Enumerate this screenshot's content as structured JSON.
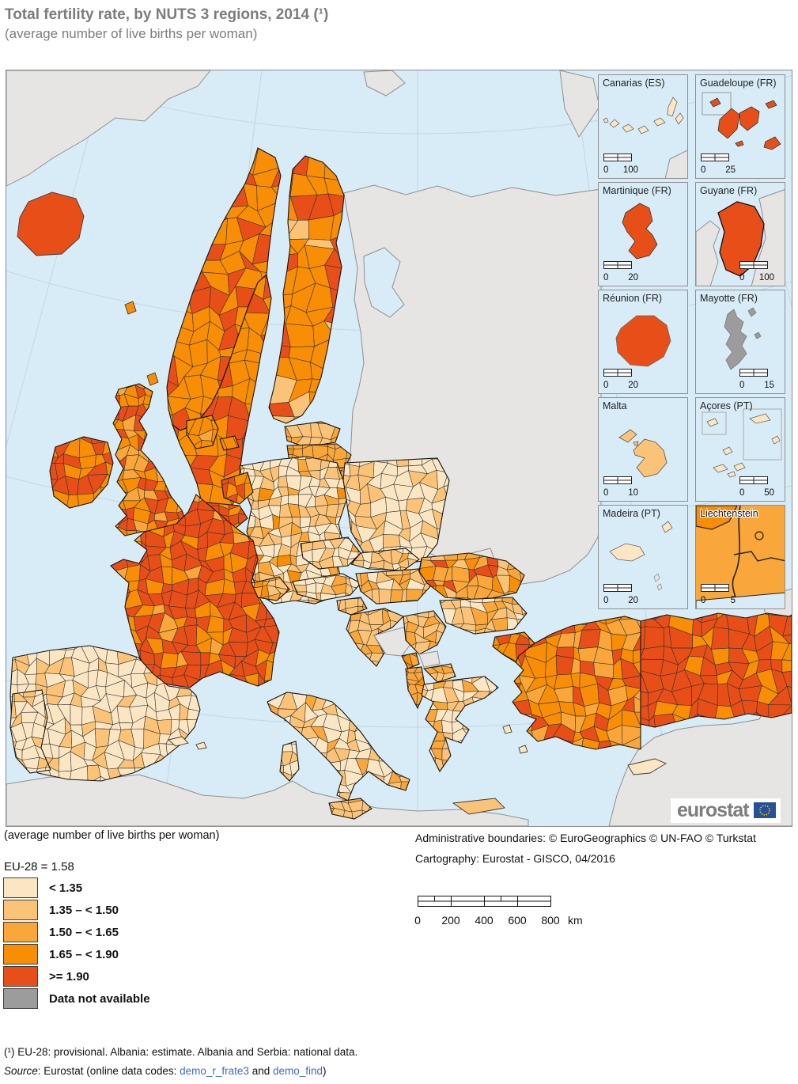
{
  "title": "Total fertility rate, by NUTS 3 regions, 2014 (¹)",
  "subtitle": "(average number of live births per woman)",
  "colors": {
    "c1": "#fbe6c4",
    "c2": "#fbc377",
    "c3": "#f9a63a",
    "c4": "#f78e05",
    "c5": "#e84f18",
    "na": "#9c9c9c",
    "na_light": "#e6e5e3",
    "sea": "#d8ecf7",
    "graticule": "#c3d5e3",
    "flag_blue": "#27509b",
    "flag_stars": "#ffcc00"
  },
  "map": {
    "logo_text": "eurostat",
    "insets": [
      {
        "label": "Canarias (ES)",
        "scale": [
          "0",
          "100"
        ]
      },
      {
        "label": "Guadeloupe (FR)",
        "scale": [
          "0",
          "25"
        ]
      },
      {
        "label": "Martinique (FR)",
        "scale": [
          "0",
          "20"
        ]
      },
      {
        "label": "Guyane (FR)",
        "scale": [
          "0",
          "100"
        ]
      },
      {
        "label": "Réunion (FR)",
        "scale": [
          "0",
          "20"
        ]
      },
      {
        "label": "Mayotte (FR)",
        "scale": [
          "0",
          "15"
        ]
      },
      {
        "label": "Malta",
        "scale": [
          "0",
          "10"
        ]
      },
      {
        "label": "Açores (PT)",
        "scale": [
          "0",
          "50"
        ]
      },
      {
        "label": "Madeira (PT)",
        "scale": [
          "0",
          "20"
        ]
      },
      {
        "label": "Liechtenstein",
        "scale": [
          "0",
          "5"
        ]
      }
    ]
  },
  "legend": {
    "note": "(average number of live births per woman)",
    "eu_value": "EU-28 = 1.58",
    "classes": [
      {
        "label": "< 1.35",
        "class": "c1"
      },
      {
        "label": "1.35 – < 1.50",
        "class": "c2"
      },
      {
        "label": "1.50 – < 1.65",
        "class": "c3"
      },
      {
        "label": "1.65 – < 1.90",
        "class": "c4"
      },
      {
        "label": ">= 1.90",
        "class": "c5"
      },
      {
        "label": "Data not available",
        "class": "na"
      }
    ]
  },
  "credits": {
    "line1": "Administrative boundaries: © EuroGeographics © UN-FAO © Turkstat",
    "line2": "Cartography: Eurostat - GISCO, 04/2016"
  },
  "scalebar": {
    "ticks": [
      "0",
      "200",
      "400",
      "600",
      "800"
    ],
    "unit": "km"
  },
  "footnotes": {
    "note1": "(¹) EU-28: provisional. Albania: estimate. Albania and Serbia: national data.",
    "source_label": "Source",
    "source_mid": ": Eurostat (online data codes: ",
    "link1": "demo_r_frate3",
    "source_and": " and ",
    "link2": "demo_find",
    "source_end": ")"
  },
  "map_regions": [
    {
      "name": "greenland",
      "classes": {
        "na_light": 1
      }
    },
    {
      "name": "svalbard",
      "classes": {
        "na_light": 1
      }
    },
    {
      "name": "novaya-zemlya",
      "classes": {
        "na_light": 1
      }
    },
    {
      "name": "russia-east-europe",
      "classes": {
        "na_light": 1
      }
    },
    {
      "name": "north-africa",
      "classes": {
        "na_light": 1
      }
    },
    {
      "name": "middle-east",
      "classes": {
        "na_light": 1
      }
    },
    {
      "name": "kaliningrad",
      "classes": {
        "na_light": 1
      }
    },
    {
      "name": "bosnia-herzegovina",
      "classes": {
        "na_light": 1
      }
    },
    {
      "name": "kosovo",
      "classes": {
        "na_light": 1
      }
    },
    {
      "name": "moldova",
      "classes": {
        "na_light": 1
      }
    },
    {
      "name": "iceland",
      "classes": {
        "c5": 1
      }
    },
    {
      "name": "norway",
      "classes": {
        "c4": 0.6,
        "c5": 0.4
      }
    },
    {
      "name": "sweden",
      "classes": {
        "c4": 0.62,
        "c5": 0.38
      }
    },
    {
      "name": "finland",
      "classes": {
        "c4": 0.5,
        "c5": 0.3,
        "c2": 0.2
      }
    },
    {
      "name": "denmark",
      "classes": {
        "c4": 0.75,
        "c3": 0.25
      }
    },
    {
      "name": "estonia",
      "classes": {
        "c3": 0.6,
        "c2": 0.4
      }
    },
    {
      "name": "latvia",
      "classes": {
        "c3": 0.9,
        "c4": 0.1
      }
    },
    {
      "name": "lithuania",
      "classes": {
        "c3": 0.75,
        "c4": 0.25
      }
    },
    {
      "name": "united-kingdom",
      "classes": {
        "c4": 0.45,
        "c5": 0.37,
        "c3": 0.18
      }
    },
    {
      "name": "ireland",
      "classes": {
        "c5": 0.55,
        "c4": 0.45
      }
    },
    {
      "name": "netherlands",
      "classes": {
        "c4": 0.65,
        "c5": 0.35
      }
    },
    {
      "name": "belgium",
      "classes": {
        "c4": 0.5,
        "c5": 0.5
      }
    },
    {
      "name": "france",
      "classes": {
        "c5": 0.72,
        "c4": 0.22,
        "c3": 0.06
      }
    },
    {
      "name": "germany",
      "classes": {
        "c1": 0.48,
        "c2": 0.3,
        "c3": 0.18,
        "c4": 0.04
      }
    },
    {
      "name": "poland",
      "classes": {
        "c1": 0.72,
        "c2": 0.28
      }
    },
    {
      "name": "czechia",
      "classes": {
        "c2": 0.55,
        "c1": 0.35,
        "c3": 0.1
      }
    },
    {
      "name": "slovakia",
      "classes": {
        "c2": 0.6,
        "c1": 0.3,
        "c3": 0.1
      }
    },
    {
      "name": "austria",
      "classes": {
        "c1": 0.5,
        "c2": 0.38,
        "c3": 0.12
      }
    },
    {
      "name": "switzerland",
      "classes": {
        "c3": 0.4,
        "c2": 0.35,
        "c4": 0.25
      }
    },
    {
      "name": "hungary",
      "classes": {
        "c2": 0.55,
        "c3": 0.3,
        "c1": 0.15
      }
    },
    {
      "name": "slovenia",
      "classes": {
        "c3": 0.6,
        "c2": 0.4
      }
    },
    {
      "name": "croatia",
      "classes": {
        "c2": 0.55,
        "c3": 0.45
      }
    },
    {
      "name": "serbia",
      "classes": {
        "c2": 0.7,
        "c3": 0.3
      }
    },
    {
      "name": "montenegro",
      "classes": {
        "c4": 0.6,
        "c3": 0.4
      }
    },
    {
      "name": "north-macedonia",
      "classes": {
        "c2": 0.6,
        "c3": 0.4
      }
    },
    {
      "name": "albania",
      "classes": {
        "c3": 0.6,
        "c4": 0.4
      }
    },
    {
      "name": "romania",
      "classes": {
        "c3": 0.35,
        "c2": 0.3,
        "c4": 0.2,
        "c5": 0.15
      }
    },
    {
      "name": "bulgaria",
      "classes": {
        "c1": 0.4,
        "c2": 0.4,
        "c3": 0.2
      }
    },
    {
      "name": "greece",
      "classes": {
        "c2": 0.45,
        "c1": 0.3,
        "c3": 0.25
      }
    },
    {
      "name": "crete",
      "classes": {
        "c2": 1
      }
    },
    {
      "name": "aegean-islands",
      "classes": {
        "c1": 1
      }
    },
    {
      "name": "italy",
      "classes": {
        "c1": 0.5,
        "c2": 0.32,
        "c3": 0.18
      }
    },
    {
      "name": "sicily",
      "classes": {
        "c2": 0.7,
        "c3": 0.3
      }
    },
    {
      "name": "sardinia",
      "classes": {
        "c1": 0.6,
        "c2": 0.4
      }
    },
    {
      "name": "corsica",
      "classes": {
        "c3": 1
      }
    },
    {
      "name": "spain",
      "classes": {
        "c1": 0.78,
        "c2": 0.22
      }
    },
    {
      "name": "portugal",
      "classes": {
        "c1": 0.7,
        "c2": 0.3
      }
    },
    {
      "name": "balearics",
      "classes": {
        "c1": 1
      }
    },
    {
      "name": "turkey-thrace",
      "classes": {
        "c4": 0.7,
        "c5": 0.3
      }
    },
    {
      "name": "turkey-west",
      "classes": {
        "c4": 0.45,
        "c3": 0.3,
        "c5": 0.25
      }
    },
    {
      "name": "turkey-east",
      "classes": {
        "c5": 0.78,
        "c4": 0.22
      }
    },
    {
      "name": "cyprus",
      "classes": {
        "c1": 1
      }
    },
    {
      "name": "gotland",
      "classes": {
        "c4": 1
      }
    },
    {
      "name": "faroe",
      "classes": {
        "c4": 1
      }
    },
    {
      "name": "shetland",
      "classes": {
        "c4": 1
      }
    }
  ]
}
